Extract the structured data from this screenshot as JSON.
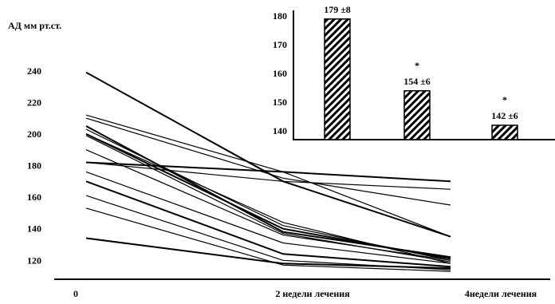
{
  "chart_data": [
    {
      "type": "line",
      "ylabel": "АД мм рт.ст.",
      "categories": [
        "0",
        "2 недели лечения",
        "4недели лечения"
      ],
      "y_ticks": [
        "240",
        "220",
        "200",
        "180",
        "160",
        "140",
        "120"
      ],
      "ylim": [
        108,
        252
      ],
      "grid": false,
      "series": [
        {
          "values": [
            239,
            170,
            135
          ]
        },
        {
          "values": [
            212,
            176,
            135
          ]
        },
        {
          "values": [
            210,
            172,
            155
          ]
        },
        {
          "values": [
            205,
            138,
            122
          ]
        },
        {
          "values": [
            203,
            142,
            120
          ]
        },
        {
          "values": [
            200,
            144,
            118
          ]
        },
        {
          "values": [
            200,
            140,
            121
          ]
        },
        {
          "values": [
            199,
            137,
            119
          ]
        },
        {
          "values": [
            190,
            136,
            120
          ]
        },
        {
          "values": [
            182,
            176,
            170
          ]
        },
        {
          "values": [
            182,
            170,
            165
          ]
        },
        {
          "values": [
            176,
            131,
            118
          ]
        },
        {
          "values": [
            170,
            124,
            116
          ]
        },
        {
          "values": [
            161,
            120,
            114
          ]
        },
        {
          "values": [
            153,
            117,
            113
          ]
        },
        {
          "values": [
            134,
            118,
            115
          ]
        }
      ]
    },
    {
      "type": "bar",
      "categories": [
        "",
        "",
        ""
      ],
      "values": [
        179,
        154,
        142
      ],
      "data_labels": [
        "179 ±8",
        "154 ±6",
        "142 ±6"
      ],
      "significance": [
        "",
        "*",
        "*"
      ],
      "y_ticks": [
        "180",
        "170",
        "160",
        "150",
        "140"
      ],
      "ylim": [
        137,
        182
      ],
      "grid": false,
      "fill_pattern": "diagonal-hatch"
    }
  ]
}
